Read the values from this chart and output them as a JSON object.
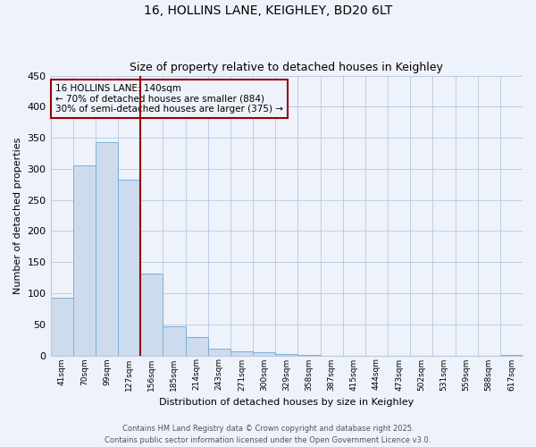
{
  "title": "16, HOLLINS LANE, KEIGHLEY, BD20 6LT",
  "subtitle": "Size of property relative to detached houses in Keighley",
  "xlabel": "Distribution of detached houses by size in Keighley",
  "ylabel": "Number of detached properties",
  "bar_color": "#ccdcee",
  "bar_edgecolor": "#7bafd4",
  "bg_color": "#eef2fa",
  "grid_color": "#b8c8e0",
  "bin_labels": [
    "41sqm",
    "70sqm",
    "99sqm",
    "127sqm",
    "156sqm",
    "185sqm",
    "214sqm",
    "243sqm",
    "271sqm",
    "300sqm",
    "329sqm",
    "358sqm",
    "387sqm",
    "415sqm",
    "444sqm",
    "473sqm",
    "502sqm",
    "531sqm",
    "559sqm",
    "588sqm",
    "617sqm"
  ],
  "bar_values": [
    93,
    305,
    343,
    282,
    131,
    47,
    30,
    11,
    7,
    5,
    2,
    1,
    0,
    0,
    0,
    0,
    0,
    0,
    0,
    0,
    1
  ],
  "vline_x": 4,
  "vline_color": "#990000",
  "ylim": [
    0,
    450
  ],
  "yticks": [
    0,
    50,
    100,
    150,
    200,
    250,
    300,
    350,
    400,
    450
  ],
  "annotation_title": "16 HOLLINS LANE: 140sqm",
  "annotation_line1": "← 70% of detached houses are smaller (884)",
  "annotation_line2": "30% of semi-detached houses are larger (375) →",
  "annotation_box_edgecolor": "#990000",
  "footnote1": "Contains HM Land Registry data © Crown copyright and database right 2025.",
  "footnote2": "Contains public sector information licensed under the Open Government Licence v3.0."
}
